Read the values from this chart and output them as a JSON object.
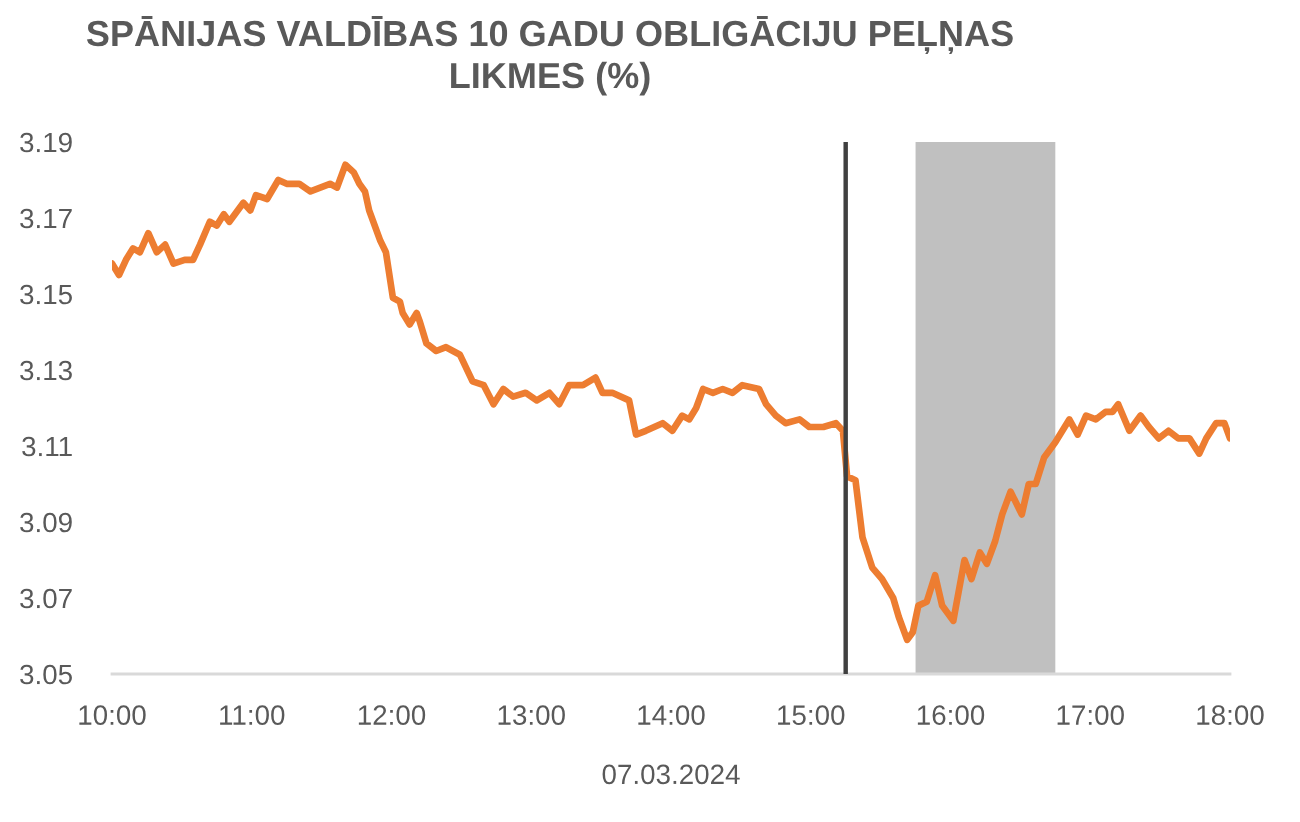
{
  "chart_data": {
    "type": "line",
    "title": "SPĀNIJAS VALDĪBAS 10 GADU OBLIGĀCIJU PEĻŅAS\nLIKMES (%)",
    "xlabel": "07.03.2024",
    "color": "#ed7d31",
    "x": [
      10.0,
      10.05,
      10.1,
      10.15,
      10.2,
      10.26,
      10.32,
      10.38,
      10.44,
      10.52,
      10.58,
      10.63,
      10.7,
      10.75,
      10.8,
      10.84,
      10.94,
      10.99,
      11.03,
      11.11,
      11.19,
      11.25,
      11.34,
      11.42,
      11.49,
      11.56,
      11.61,
      11.67,
      11.73,
      11.77,
      11.81,
      11.84,
      11.92,
      11.96,
      12.01,
      12.06,
      12.08,
      12.13,
      12.18,
      12.2,
      12.25,
      12.32,
      12.39,
      12.49,
      12.58,
      12.66,
      12.73,
      12.8,
      12.87,
      12.96,
      13.04,
      13.13,
      13.2,
      13.27,
      13.37,
      13.46,
      13.51,
      13.58,
      13.7,
      13.75,
      13.82,
      13.94,
      14.01,
      14.08,
      14.13,
      14.18,
      14.23,
      14.3,
      14.37,
      14.44,
      14.51,
      14.63,
      14.68,
      14.75,
      14.82,
      14.92,
      14.99,
      15.09,
      15.18,
      15.23,
      15.26,
      15.32,
      15.37,
      15.44,
      15.51,
      15.59,
      15.63,
      15.69,
      15.73,
      15.77,
      15.83,
      15.89,
      15.94,
      16.02,
      16.1,
      16.15,
      16.21,
      16.26,
      16.32,
      16.37,
      16.43,
      16.51,
      16.56,
      16.61,
      16.67,
      16.75,
      16.85,
      16.91,
      16.97,
      17.04,
      17.11,
      17.16,
      17.2,
      17.28,
      17.36,
      17.42,
      17.49,
      17.56,
      17.63,
      17.71,
      17.78,
      17.83,
      17.9,
      17.96,
      18.0
    ],
    "values": [
      3.158,
      3.155,
      3.159,
      3.162,
      3.161,
      3.166,
      3.161,
      3.163,
      3.158,
      3.159,
      3.159,
      3.163,
      3.169,
      3.168,
      3.171,
      3.169,
      3.174,
      3.172,
      3.176,
      3.175,
      3.18,
      3.179,
      3.179,
      3.177,
      3.178,
      3.179,
      3.178,
      3.184,
      3.182,
      3.179,
      3.177,
      3.172,
      3.164,
      3.161,
      3.149,
      3.148,
      3.145,
      3.142,
      3.145,
      3.143,
      3.137,
      3.135,
      3.136,
      3.134,
      3.127,
      3.126,
      3.121,
      3.125,
      3.123,
      3.124,
      3.122,
      3.124,
      3.121,
      3.126,
      3.126,
      3.128,
      3.124,
      3.124,
      3.122,
      3.113,
      3.114,
      3.116,
      3.114,
      3.118,
      3.117,
      3.12,
      3.125,
      3.124,
      3.125,
      3.124,
      3.126,
      3.125,
      3.121,
      3.118,
      3.116,
      3.117,
      3.115,
      3.115,
      3.116,
      3.114,
      3.102,
      3.101,
      3.086,
      3.078,
      3.075,
      3.07,
      3.065,
      3.059,
      3.061,
      3.068,
      3.069,
      3.076,
      3.068,
      3.064,
      3.08,
      3.075,
      3.082,
      3.079,
      3.085,
      3.092,
      3.098,
      3.092,
      3.1,
      3.1,
      3.107,
      3.111,
      3.117,
      3.113,
      3.118,
      3.117,
      3.119,
      3.119,
      3.121,
      3.114,
      3.118,
      3.115,
      3.112,
      3.114,
      3.112,
      3.112,
      3.108,
      3.112,
      3.116,
      3.116,
      3.112
    ],
    "xlim": [
      10,
      18
    ],
    "xticks": [
      {
        "value": 10,
        "label": "10:00"
      },
      {
        "value": 11,
        "label": "11:00"
      },
      {
        "value": 12,
        "label": "12:00"
      },
      {
        "value": 13,
        "label": "13:00"
      },
      {
        "value": 14,
        "label": "14:00"
      },
      {
        "value": 15,
        "label": "15:00"
      },
      {
        "value": 16,
        "label": "16:00"
      },
      {
        "value": 17,
        "label": "17:00"
      },
      {
        "value": 18,
        "label": "18:00"
      }
    ],
    "ylim": [
      3.05,
      3.19
    ],
    "yticks": [
      3.05,
      3.07,
      3.09,
      3.11,
      3.13,
      3.15,
      3.17,
      3.19
    ],
    "ref_lines": [
      {
        "axis": "x",
        "value": 15.25,
        "color": "#404040"
      }
    ],
    "bands": [
      {
        "axis": "x",
        "from": 15.75,
        "to": 16.75,
        "color": "#c0c0c0"
      }
    ]
  }
}
